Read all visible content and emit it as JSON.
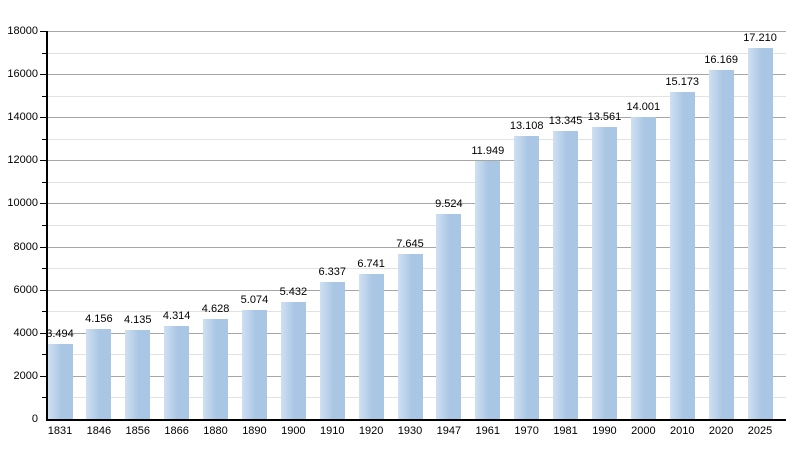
{
  "chart_data": {
    "type": "bar",
    "title": "",
    "xlabel": "",
    "ylabel": "",
    "categories": [
      "1831",
      "1846",
      "1856",
      "1866",
      "1880",
      "1890",
      "1900",
      "1910",
      "1920",
      "1930",
      "1947",
      "1961",
      "1970",
      "1981",
      "1990",
      "2000",
      "2010",
      "2020",
      "2025"
    ],
    "values": [
      3494,
      4156,
      4135,
      4314,
      4628,
      5074,
      5432,
      6337,
      6741,
      7645,
      9524,
      11949,
      13108,
      13345,
      13561,
      14001,
      15173,
      16169,
      17210
    ],
    "value_labels": [
      "3.494",
      "4.156",
      "4.135",
      "4.314",
      "4.628",
      "5.074",
      "5.432",
      "6.337",
      "6.741",
      "7.645",
      "9.524",
      "11.949",
      "13.108",
      "13.345",
      "13.561",
      "14.001",
      "15.173",
      "16.169",
      "17.210"
    ],
    "ylim": [
      0,
      18000
    ],
    "y_major_step": 2000,
    "y_minor_step": 1000,
    "y_tick_labels": [
      "0",
      "2000",
      "4000",
      "6000",
      "8000",
      "10000",
      "12000",
      "14000",
      "16000",
      "18000"
    ],
    "grid": true,
    "legend": "none"
  },
  "colors": {
    "bar_fill": "#a9c6e4",
    "bar_fill_light": "#cfe0f2",
    "grid_major": "#a6a6a6",
    "grid_minor": "#e2e2e2",
    "axis": "#000000",
    "text": "#000000",
    "background": "#ffffff"
  }
}
